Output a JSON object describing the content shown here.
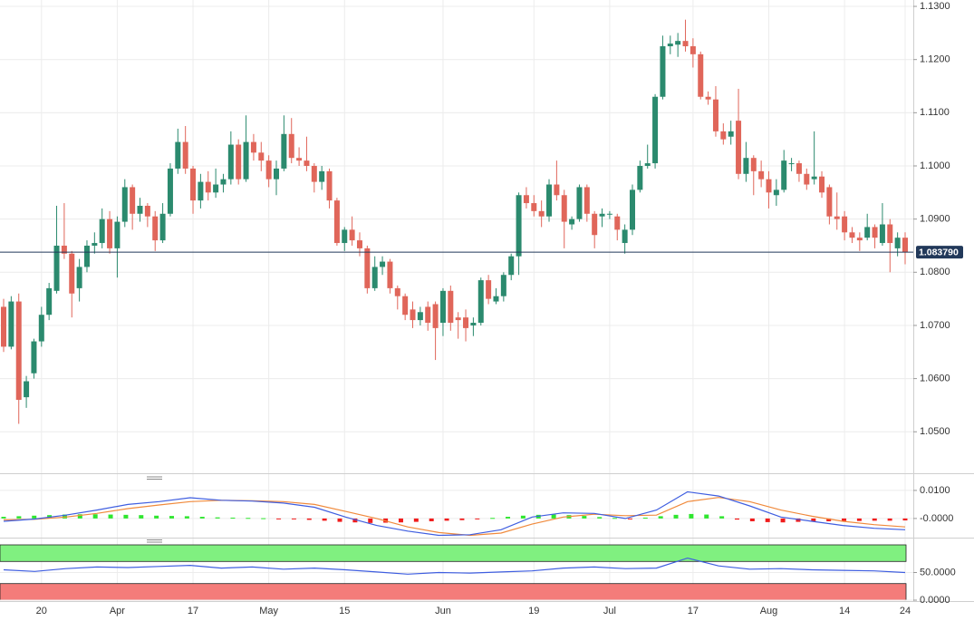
{
  "chart_data": [
    {
      "type": "candlestick",
      "categories": [
        null,
        null,
        null,
        null,
        null,
        "20",
        null,
        null,
        null,
        null,
        null,
        null,
        null,
        null,
        null,
        "Apr",
        null,
        null,
        null,
        null,
        null,
        null,
        null,
        null,
        null,
        "17",
        null,
        null,
        null,
        null,
        null,
        null,
        null,
        null,
        null,
        "May",
        null,
        null,
        null,
        null,
        null,
        null,
        null,
        null,
        null,
        "15",
        null,
        null,
        null,
        null,
        null,
        null,
        null,
        null,
        null,
        null,
        null,
        null,
        "Jun",
        null,
        null,
        null,
        null,
        null,
        null,
        null,
        null,
        null,
        null,
        null,
        "19",
        null,
        null,
        null,
        null,
        null,
        null,
        null,
        null,
        null,
        "Jul",
        null,
        null,
        null,
        null,
        null,
        null,
        null,
        null,
        null,
        null,
        "17",
        null,
        null,
        null,
        null,
        null,
        null,
        null,
        null,
        null,
        "Aug",
        null,
        null,
        null,
        null,
        null,
        null,
        null,
        null,
        null,
        "14",
        null,
        null,
        null,
        null,
        null,
        null,
        null,
        "24"
      ],
      "open": [
        1.0735,
        1.066,
        1.0745,
        1.0565,
        1.061,
        1.067,
        1.072,
        1.0765,
        1.085,
        1.0835,
        1.077,
        1.081,
        1.085,
        1.0855,
        1.09,
        1.0845,
        1.0895,
        1.096,
        1.091,
        1.0925,
        1.0905,
        1.086,
        1.091,
        1.0995,
        1.1045,
        1.0995,
        1.0935,
        1.097,
        1.095,
        1.0965,
        1.0975,
        1.104,
        1.0975,
        1.1045,
        1.1025,
        1.101,
        1.0975,
        1.0995,
        1.106,
        1.1015,
        1.101,
        1.1,
        1.097,
        1.099,
        1.0935,
        1.0855,
        1.088,
        1.086,
        1.0845,
        1.077,
        1.081,
        1.082,
        1.077,
        1.0755,
        1.073,
        1.071,
        1.0735,
        1.074,
        1.0705,
        1.0765,
        1.0715,
        1.0715,
        1.07,
        1.0705,
        1.0785,
        1.0745,
        1.0755,
        1.0795,
        1.083,
        1.0945,
        1.093,
        1.0915,
        1.0905,
        1.0965,
        1.0945,
        1.089,
        1.09,
        1.096,
        1.091,
        1.0905,
        1.091,
        1.0905,
        1.0855,
        1.088,
        1.0955,
        1.1,
        1.1005,
        1.113,
        1.1225,
        1.1228,
        1.1235,
        1.1225,
        1.121,
        1.113,
        1.1125,
        1.1065,
        1.1055,
        1.1085,
        1.0985,
        1.1015,
        1.099,
        1.0975,
        1.0945,
        1.0955,
        1.1005,
        1.1005,
        1.0985,
        1.0975,
        1.098,
        1.096,
        1.0905,
        1.0905,
        1.0875,
        1.0865,
        1.0865,
        1.0885,
        1.0855,
        1.089,
        1.0845,
        1.0865
      ],
      "high": [
        1.075,
        1.0755,
        1.076,
        1.0605,
        1.0675,
        1.0735,
        1.078,
        1.0925,
        1.093,
        1.084,
        1.0825,
        1.086,
        1.0875,
        1.092,
        1.0915,
        1.0905,
        1.0975,
        1.0965,
        1.094,
        1.093,
        1.0915,
        1.093,
        1.1005,
        1.107,
        1.1075,
        1.1,
        1.0985,
        1.099,
        1.0995,
        1.0985,
        1.1065,
        1.105,
        1.1095,
        1.106,
        1.1045,
        1.102,
        1.101,
        1.1095,
        1.109,
        1.1035,
        1.1055,
        1.1005,
        1.1,
        1.0995,
        1.094,
        1.0885,
        1.0905,
        1.0875,
        1.085,
        1.083,
        1.083,
        1.0825,
        1.0775,
        1.076,
        1.0745,
        1.0735,
        1.0745,
        1.0745,
        1.077,
        1.0775,
        1.0725,
        1.073,
        1.0715,
        1.079,
        1.0795,
        1.077,
        1.08,
        1.0835,
        1.095,
        1.096,
        1.0945,
        1.0935,
        1.0975,
        1.101,
        1.0955,
        1.0905,
        1.0965,
        1.0965,
        1.0915,
        1.092,
        1.0915,
        1.091,
        1.089,
        1.0965,
        1.101,
        1.104,
        1.1135,
        1.1245,
        1.1245,
        1.125,
        1.1275,
        1.124,
        1.1215,
        1.114,
        1.115,
        1.108,
        1.1085,
        1.1145,
        1.1045,
        1.102,
        1.101,
        1.099,
        1.0975,
        1.103,
        1.1015,
        1.101,
        1.0995,
        1.1065,
        1.099,
        1.0965,
        1.095,
        1.0915,
        1.0885,
        1.0875,
        1.091,
        1.089,
        1.093,
        1.09,
        1.0875,
        1.0875
      ],
      "low": [
        1.065,
        1.0655,
        1.0515,
        1.0545,
        1.06,
        1.066,
        1.071,
        1.076,
        1.0825,
        1.0715,
        1.0745,
        1.08,
        1.0835,
        1.0845,
        1.0835,
        1.079,
        1.0885,
        1.088,
        1.0895,
        1.0885,
        1.084,
        1.0855,
        1.0905,
        1.0985,
        1.0985,
        1.091,
        1.092,
        1.0935,
        1.094,
        1.095,
        1.0965,
        1.0965,
        1.097,
        1.101,
        1.099,
        1.096,
        1.0945,
        1.099,
        1.1005,
        1.1,
        1.099,
        1.095,
        1.0955,
        1.092,
        1.085,
        1.084,
        1.085,
        1.083,
        1.076,
        1.0765,
        1.0795,
        1.076,
        1.073,
        1.071,
        1.0695,
        1.07,
        1.069,
        1.0635,
        1.068,
        1.069,
        1.0675,
        1.067,
        1.068,
        1.07,
        1.074,
        1.074,
        1.0745,
        1.0785,
        1.0795,
        1.092,
        1.0905,
        1.0885,
        1.0895,
        1.0935,
        1.0845,
        1.088,
        1.0895,
        1.0895,
        1.0845,
        1.0885,
        1.09,
        1.086,
        1.0835,
        1.087,
        1.095,
        1.0995,
        1.0995,
        1.1125,
        1.121,
        1.1205,
        1.1215,
        1.1185,
        1.1125,
        1.1115,
        1.1055,
        1.104,
        1.104,
        1.0975,
        1.097,
        1.0945,
        1.096,
        1.092,
        1.0925,
        1.095,
        1.099,
        1.097,
        1.0955,
        1.0965,
        1.094,
        1.089,
        1.088,
        1.086,
        1.0855,
        1.084,
        1.086,
        1.0845,
        1.085,
        1.08,
        1.083,
        1.0815
      ],
      "close": [
        1.066,
        1.0745,
        1.056,
        1.0595,
        1.067,
        1.072,
        1.077,
        1.085,
        1.0835,
        1.076,
        1.081,
        1.085,
        1.0855,
        1.09,
        1.0845,
        1.0895,
        1.096,
        1.091,
        1.0925,
        1.0905,
        1.086,
        1.091,
        1.0995,
        1.1045,
        1.0995,
        1.0935,
        1.097,
        1.095,
        1.0965,
        1.0975,
        1.104,
        1.0975,
        1.1045,
        1.1025,
        1.101,
        1.0975,
        1.0995,
        1.106,
        1.1015,
        1.101,
        1.1,
        1.097,
        1.099,
        1.0935,
        1.0855,
        1.088,
        1.086,
        1.0845,
        1.077,
        1.081,
        1.082,
        1.077,
        1.0755,
        1.072,
        1.071,
        1.0725,
        1.0705,
        1.0695,
        1.0765,
        1.0705,
        1.071,
        1.0695,
        1.0705,
        1.0785,
        1.075,
        1.0755,
        1.0795,
        1.083,
        1.0945,
        1.093,
        1.0915,
        1.0905,
        1.0965,
        1.0945,
        1.0895,
        1.09,
        1.096,
        1.091,
        1.087,
        1.091,
        1.091,
        1.088,
        1.088,
        1.0955,
        1.1,
        1.1005,
        1.113,
        1.1225,
        1.123,
        1.1235,
        1.1225,
        1.121,
        1.113,
        1.1125,
        1.1065,
        1.105,
        1.1065,
        1.0985,
        1.1015,
        1.099,
        1.0975,
        1.095,
        1.0955,
        1.101,
        1.1005,
        1.0985,
        1.0965,
        1.098,
        1.095,
        1.0905,
        1.09,
        1.0875,
        1.0865,
        1.086,
        1.0885,
        1.0865,
        1.089,
        1.0855,
        1.0865,
        1.08379
      ],
      "up_color": "#2b8a6e",
      "down_color": "#e0665a",
      "ylim": [
        1.0422,
        1.1312
      ],
      "yticks": [
        {
          "value": 1.05,
          "label": "1.0500"
        },
        {
          "value": 1.06,
          "label": "1.0600"
        },
        {
          "value": 1.07,
          "label": "1.0700"
        },
        {
          "value": 1.08,
          "label": "1.0800"
        },
        {
          "value": 1.09,
          "label": "1.0900"
        },
        {
          "value": 1.1,
          "label": "1.1000"
        },
        {
          "value": 1.11,
          "label": "1.1100"
        },
        {
          "value": 1.12,
          "label": "1.1200"
        },
        {
          "value": 1.13,
          "label": "1.1300"
        }
      ],
      "grid": true,
      "last_price": {
        "value": 1.08379,
        "label": "1.083790"
      },
      "last_price_color": "#22395a"
    },
    {
      "type": "macd",
      "macd": {
        "color": "#3f5ee0",
        "values": [
          -0.001,
          -0.0002,
          0.0012,
          0.003,
          0.005,
          0.006,
          0.0074,
          0.0065,
          0.0062,
          0.0055,
          0.004,
          0.0005,
          -0.0025,
          -0.0045,
          -0.006,
          -0.0058,
          -0.004,
          0.0005,
          0.002,
          0.0018,
          0.0,
          0.003,
          0.0095,
          0.008,
          0.0045,
          0.0005,
          -0.001,
          -0.0025,
          -0.0035,
          -0.004
        ]
      },
      "signal": {
        "color": "#f08a3c",
        "values": [
          -0.0005,
          -0.0003,
          0.0005,
          0.0018,
          0.0035,
          0.0048,
          0.006,
          0.0065,
          0.0063,
          0.006,
          0.005,
          0.0025,
          0.0,
          -0.003,
          -0.005,
          -0.006,
          -0.0052,
          -0.002,
          0.0005,
          0.0015,
          0.001,
          0.0012,
          0.006,
          0.0075,
          0.006,
          0.003,
          0.0008,
          -0.001,
          -0.0022,
          -0.003
        ]
      },
      "histogram": {
        "up_color": "#2ee62e",
        "down_color": "#f01c1c",
        "values": [
          0.0006,
          0.0008,
          0.001,
          0.0012,
          0.0014,
          0.0015,
          0.0015,
          0.0014,
          0.0013,
          0.0012,
          0.001,
          0.0009,
          0.0008,
          0.0006,
          0.0004,
          0.0003,
          0.0002,
          0.0001,
          -0.0001,
          -0.0003,
          -0.0005,
          -0.0008,
          -0.0012,
          -0.0014,
          -0.0016,
          -0.0015,
          -0.0014,
          -0.0012,
          -0.001,
          -0.0008,
          -0.0006,
          -0.0003,
          0.0002,
          0.0006,
          0.001,
          0.0013,
          0.0014,
          0.0012,
          0.0009,
          0.0005,
          0.0002,
          -0.0001,
          0.0003,
          0.0008,
          0.0013,
          0.0016,
          0.0014,
          0.0008,
          -0.0004,
          -0.001,
          -0.0013,
          -0.0014,
          -0.0012,
          -0.0011,
          -0.001,
          -0.0009,
          -0.0009,
          -0.0008,
          -0.0008,
          -0.0007
        ]
      },
      "ylim": [
        -0.0065,
        0.0145
      ],
      "yticks": [
        {
          "value": 0.01,
          "label": "0.0100"
        },
        {
          "value": 0,
          "label": "-0.0000"
        }
      ]
    },
    {
      "type": "rsi",
      "values": [
        55,
        52,
        57,
        60,
        59,
        61,
        63,
        58,
        60,
        56,
        58,
        55,
        51,
        47,
        50,
        49,
        51,
        53,
        58,
        60,
        57,
        58,
        76,
        62,
        56,
        57,
        55,
        54,
        53,
        50
      ],
      "color": "#3f5ee0",
      "ylim": [
        0,
        100
      ],
      "yticks": [
        {
          "value": 50,
          "label": "50.0000"
        },
        {
          "value": 0,
          "label": "0.0000"
        }
      ],
      "bands": [
        {
          "from": 70,
          "to": 100,
          "color": "#80f080"
        },
        {
          "from": 0,
          "to": 30,
          "color": "#f47c7a"
        }
      ]
    }
  ]
}
